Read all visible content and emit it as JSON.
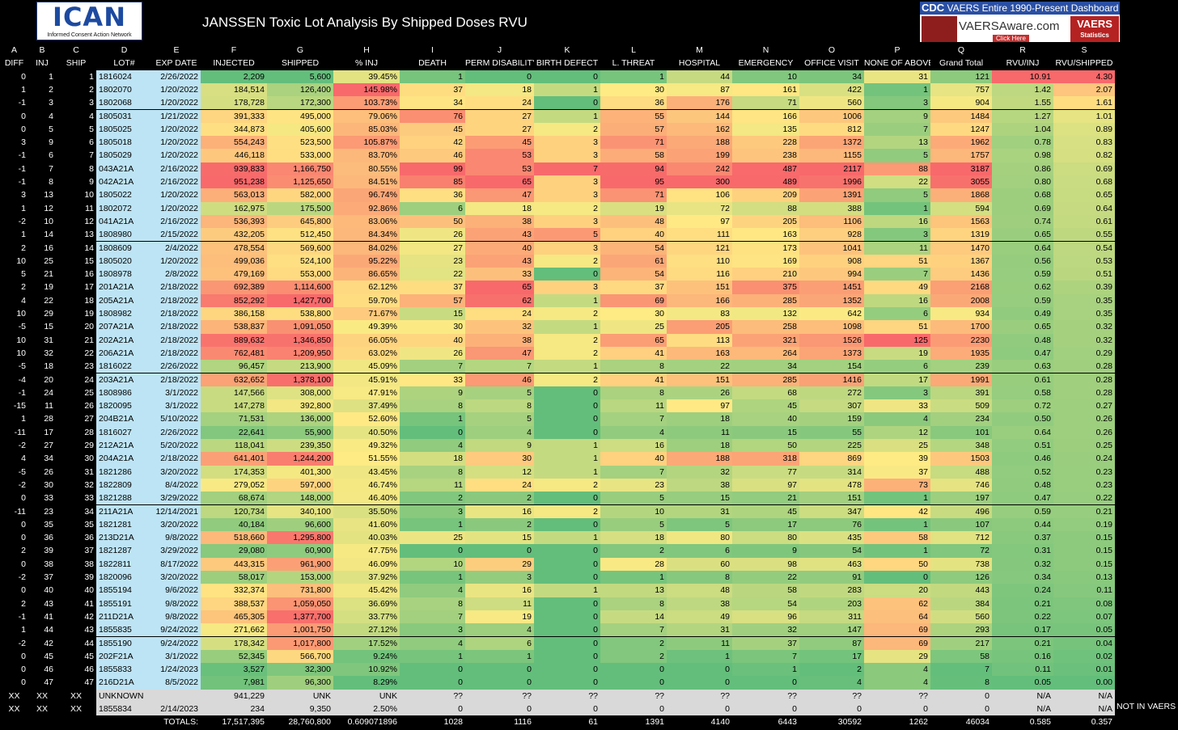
{
  "title": "JANSSEN Toxic Lot Analysis By Shipped Doses RVU",
  "logo": {
    "name": "ICAN",
    "sub": "Informed Consent Action Network"
  },
  "vaers_banner": {
    "top_cdc": "CDC",
    "top": "VAERS Entire 1990-Present Dashboard",
    "site": "VAERSAware.com",
    "click": "Click Here",
    "badge": "VAERS",
    "badge_sub": "Statistics"
  },
  "note": "NOT IN VAERS",
  "colors": {
    "green": "#63be7b",
    "yellow": "#ffeb84",
    "red": "#f8696b",
    "lightblue": "#bde4f4",
    "grey": "#d9d9d9"
  },
  "chart_data": {
    "type": "table",
    "column_letters": [
      "A",
      "B",
      "C",
      "D",
      "E",
      "F",
      "G",
      "H",
      "I",
      "J",
      "K",
      "L",
      "M",
      "N",
      "O",
      "P",
      "Q",
      "R",
      "S"
    ],
    "columns": [
      "DIFF",
      "INJ",
      "SHIP",
      "LOT#",
      "EXP DATE",
      "INJECTED",
      "SHIPPED",
      "% INJ",
      "DEATH",
      "PERM DISABILITY",
      "BIRTH DEFECT",
      "L. THREAT",
      "HOSPITAL",
      "EMERGENCY",
      "OFFICE VISIT",
      "NONE OF ABOVE",
      "Grand Total",
      "RVU/INJ",
      "RVU/SHIPPED"
    ],
    "rows": [
      [
        "0",
        "1",
        "1",
        "1816024",
        "2/26/2022",
        "2,209",
        "5,600",
        "39.45%",
        "1",
        "0",
        "0",
        "1",
        "44",
        "10",
        "34",
        "31",
        "121",
        "10.91",
        "4.30"
      ],
      [
        "1",
        "2",
        "2",
        "1802070",
        "1/20/2022",
        "184,514",
        "126,400",
        "145.98%",
        "37",
        "18",
        "1",
        "30",
        "87",
        "161",
        "422",
        "1",
        "757",
        "1.42",
        "2.07"
      ],
      [
        "-1",
        "3",
        "3",
        "1802068",
        "1/20/2022",
        "178,728",
        "172,300",
        "103.73%",
        "34",
        "24",
        "0",
        "36",
        "176",
        "71",
        "560",
        "3",
        "904",
        "1.55",
        "1.61"
      ],
      [
        "0",
        "4",
        "4",
        "1805031",
        "1/21/2022",
        "391,333",
        "495,000",
        "79.06%",
        "76",
        "27",
        "1",
        "55",
        "144",
        "166",
        "1006",
        "9",
        "1484",
        "1.27",
        "1.01"
      ],
      [
        "0",
        "5",
        "5",
        "1805025",
        "1/20/2022",
        "344,873",
        "405,600",
        "85.03%",
        "45",
        "27",
        "2",
        "57",
        "162",
        "135",
        "812",
        "7",
        "1247",
        "1.04",
        "0.89"
      ],
      [
        "3",
        "9",
        "6",
        "1805018",
        "1/20/2022",
        "554,243",
        "523,500",
        "105.87%",
        "42",
        "45",
        "3",
        "71",
        "188",
        "228",
        "1372",
        "13",
        "1962",
        "0.78",
        "0.83"
      ],
      [
        "-1",
        "6",
        "7",
        "1805029",
        "1/20/2022",
        "446,118",
        "533,000",
        "83.70%",
        "46",
        "53",
        "3",
        "58",
        "199",
        "238",
        "1155",
        "5",
        "1757",
        "0.98",
        "0.82"
      ],
      [
        "-1",
        "7",
        "8",
        "043A21A",
        "2/16/2022",
        "939,833",
        "1,166,750",
        "80.55%",
        "99",
        "53",
        "7",
        "94",
        "242",
        "487",
        "2117",
        "88",
        "3187",
        "0.86",
        "0.69"
      ],
      [
        "-1",
        "8",
        "9",
        "042A21A",
        "2/16/2022",
        "951,238",
        "1,125,650",
        "84.51%",
        "85",
        "65",
        "3",
        "95",
        "300",
        "489",
        "1996",
        "22",
        "3055",
        "0.80",
        "0.68"
      ],
      [
        "3",
        "13",
        "10",
        "1805022",
        "1/20/2022",
        "563,013",
        "582,000",
        "96.74%",
        "36",
        "47",
        "3",
        "71",
        "106",
        "209",
        "1391",
        "5",
        "1868",
        "0.68",
        "0.65"
      ],
      [
        "1",
        "12",
        "11",
        "1802072",
        "1/20/2022",
        "162,975",
        "175,500",
        "92.86%",
        "6",
        "18",
        "2",
        "19",
        "72",
        "88",
        "388",
        "1",
        "594",
        "0.69",
        "0.64"
      ],
      [
        "-2",
        "10",
        "12",
        "041A21A",
        "2/16/2022",
        "536,393",
        "645,800",
        "83.06%",
        "50",
        "38",
        "3",
        "48",
        "97",
        "205",
        "1106",
        "16",
        "1563",
        "0.74",
        "0.61"
      ],
      [
        "1",
        "14",
        "13",
        "1808980",
        "2/15/2022",
        "432,205",
        "512,450",
        "84.34%",
        "26",
        "43",
        "5",
        "40",
        "111",
        "163",
        "928",
        "3",
        "1319",
        "0.65",
        "0.55"
      ],
      [
        "2",
        "16",
        "14",
        "1808609",
        "2/4/2022",
        "478,554",
        "569,600",
        "84.02%",
        "27",
        "40",
        "3",
        "54",
        "121",
        "173",
        "1041",
        "11",
        "1470",
        "0.64",
        "0.54"
      ],
      [
        "10",
        "25",
        "15",
        "1805020",
        "1/20/2022",
        "499,036",
        "524,100",
        "95.22%",
        "23",
        "43",
        "2",
        "61",
        "110",
        "169",
        "908",
        "51",
        "1367",
        "0.56",
        "0.53"
      ],
      [
        "5",
        "21",
        "16",
        "1808978",
        "2/8/2022",
        "479,169",
        "553,000",
        "86.65%",
        "22",
        "33",
        "0",
        "54",
        "116",
        "210",
        "994",
        "7",
        "1436",
        "0.59",
        "0.51"
      ],
      [
        "2",
        "19",
        "17",
        "201A21A",
        "2/18/2022",
        "692,389",
        "1,114,600",
        "62.12%",
        "37",
        "65",
        "3",
        "37",
        "151",
        "375",
        "1451",
        "49",
        "2168",
        "0.62",
        "0.39"
      ],
      [
        "4",
        "22",
        "18",
        "205A21A",
        "2/18/2022",
        "852,292",
        "1,427,700",
        "59.70%",
        "57",
        "62",
        "1",
        "69",
        "166",
        "285",
        "1352",
        "16",
        "2008",
        "0.59",
        "0.35"
      ],
      [
        "10",
        "29",
        "19",
        "1808982",
        "2/18/2022",
        "386,158",
        "538,800",
        "71.67%",
        "15",
        "24",
        "2",
        "30",
        "83",
        "132",
        "642",
        "6",
        "934",
        "0.49",
        "0.35"
      ],
      [
        "-5",
        "15",
        "20",
        "207A21A",
        "2/18/2022",
        "538,837",
        "1,091,050",
        "49.39%",
        "30",
        "32",
        "1",
        "25",
        "205",
        "258",
        "1098",
        "51",
        "1700",
        "0.65",
        "0.32"
      ],
      [
        "10",
        "31",
        "21",
        "202A21A",
        "2/18/2022",
        "889,632",
        "1,346,850",
        "66.05%",
        "40",
        "38",
        "2",
        "65",
        "113",
        "321",
        "1526",
        "125",
        "2230",
        "0.48",
        "0.32"
      ],
      [
        "10",
        "32",
        "22",
        "206A21A",
        "2/18/2022",
        "762,481",
        "1,209,950",
        "63.02%",
        "26",
        "47",
        "2",
        "41",
        "163",
        "264",
        "1373",
        "19",
        "1935",
        "0.47",
        "0.29"
      ],
      [
        "-5",
        "18",
        "23",
        "1816022",
        "2/26/2022",
        "96,457",
        "213,900",
        "45.09%",
        "7",
        "7",
        "1",
        "8",
        "22",
        "34",
        "154",
        "6",
        "239",
        "0.63",
        "0.28"
      ],
      [
        "-4",
        "20",
        "24",
        "203A21A",
        "2/18/2022",
        "632,652",
        "1,378,100",
        "45.91%",
        "33",
        "46",
        "2",
        "41",
        "151",
        "285",
        "1416",
        "17",
        "1991",
        "0.61",
        "0.28"
      ],
      [
        "-1",
        "24",
        "25",
        "1808986",
        "3/1/2022",
        "147,566",
        "308,000",
        "47.91%",
        "9",
        "5",
        "0",
        "8",
        "26",
        "68",
        "272",
        "3",
        "391",
        "0.58",
        "0.28"
      ],
      [
        "-15",
        "11",
        "26",
        "1820095",
        "3/1/2022",
        "147,278",
        "392,800",
        "37.49%",
        "8",
        "8",
        "0",
        "11",
        "97",
        "45",
        "307",
        "33",
        "509",
        "0.72",
        "0.27"
      ],
      [
        "1",
        "28",
        "27",
        "204B21A",
        "5/10/2022",
        "71,531",
        "136,000",
        "52.60%",
        "1",
        "5",
        "0",
        "7",
        "18",
        "40",
        "159",
        "4",
        "234",
        "0.50",
        "0.26"
      ],
      [
        "-11",
        "17",
        "28",
        "1816027",
        "2/26/2022",
        "22,641",
        "55,900",
        "40.50%",
        "0",
        "4",
        "0",
        "4",
        "11",
        "15",
        "55",
        "12",
        "101",
        "0.64",
        "0.26"
      ],
      [
        "-2",
        "27",
        "29",
        "212A21A",
        "5/20/2022",
        "118,041",
        "239,350",
        "49.32%",
        "4",
        "9",
        "1",
        "16",
        "18",
        "50",
        "225",
        "25",
        "348",
        "0.51",
        "0.25"
      ],
      [
        "4",
        "34",
        "30",
        "204A21A",
        "2/18/2022",
        "641,401",
        "1,244,200",
        "51.55%",
        "18",
        "30",
        "1",
        "40",
        "188",
        "318",
        "869",
        "39",
        "1503",
        "0.46",
        "0.24"
      ],
      [
        "-5",
        "26",
        "31",
        "1821286",
        "3/20/2022",
        "174,353",
        "401,300",
        "43.45%",
        "8",
        "12",
        "1",
        "7",
        "32",
        "77",
        "314",
        "37",
        "488",
        "0.52",
        "0.23"
      ],
      [
        "-2",
        "30",
        "32",
        "1822809",
        "8/4/2022",
        "279,052",
        "597,000",
        "46.74%",
        "11",
        "24",
        "2",
        "23",
        "38",
        "97",
        "478",
        "73",
        "746",
        "0.48",
        "0.23"
      ],
      [
        "0",
        "33",
        "33",
        "1821288",
        "3/29/2022",
        "68,674",
        "148,000",
        "46.40%",
        "2",
        "2",
        "0",
        "5",
        "15",
        "21",
        "151",
        "1",
        "197",
        "0.47",
        "0.22"
      ],
      [
        "-11",
        "23",
        "34",
        "211A21A",
        "12/14/2021",
        "120,734",
        "340,100",
        "35.50%",
        "3",
        "16",
        "2",
        "10",
        "31",
        "45",
        "347",
        "42",
        "496",
        "0.59",
        "0.21"
      ],
      [
        "0",
        "35",
        "35",
        "1821281",
        "3/20/2022",
        "40,184",
        "96,600",
        "41.60%",
        "1",
        "2",
        "0",
        "5",
        "5",
        "17",
        "76",
        "1",
        "107",
        "0.44",
        "0.19"
      ],
      [
        "0",
        "36",
        "36",
        "213D21A",
        "9/8/2022",
        "518,660",
        "1,295,800",
        "40.03%",
        "25",
        "15",
        "1",
        "18",
        "80",
        "80",
        "435",
        "58",
        "712",
        "0.37",
        "0.15"
      ],
      [
        "2",
        "39",
        "37",
        "1821287",
        "3/29/2022",
        "29,080",
        "60,900",
        "47.75%",
        "0",
        "0",
        "0",
        "2",
        "6",
        "9",
        "54",
        "1",
        "72",
        "0.31",
        "0.15"
      ],
      [
        "0",
        "38",
        "38",
        "1822811",
        "8/17/2022",
        "443,315",
        "961,900",
        "46.09%",
        "10",
        "29",
        "0",
        "28",
        "60",
        "98",
        "463",
        "50",
        "738",
        "0.32",
        "0.15"
      ],
      [
        "-2",
        "37",
        "39",
        "1820096",
        "3/20/2022",
        "58,017",
        "153,000",
        "37.92%",
        "1",
        "3",
        "0",
        "1",
        "8",
        "22",
        "91",
        "0",
        "126",
        "0.34",
        "0.13"
      ],
      [
        "0",
        "40",
        "40",
        "1855194",
        "9/6/2022",
        "332,374",
        "731,800",
        "45.42%",
        "4",
        "16",
        "1",
        "13",
        "48",
        "58",
        "283",
        "20",
        "443",
        "0.24",
        "0.11"
      ],
      [
        "2",
        "43",
        "41",
        "1855191",
        "9/8/2022",
        "388,537",
        "1,059,050",
        "36.69%",
        "8",
        "11",
        "0",
        "8",
        "38",
        "54",
        "203",
        "62",
        "384",
        "0.21",
        "0.08"
      ],
      [
        "-1",
        "41",
        "42",
        "211D21A",
        "9/8/2022",
        "465,305",
        "1,377,700",
        "33.77%",
        "7",
        "19",
        "0",
        "14",
        "49",
        "96",
        "311",
        "64",
        "560",
        "0.22",
        "0.07"
      ],
      [
        "1",
        "44",
        "43",
        "1855835",
        "9/24/2022",
        "271,662",
        "1,001,750",
        "27.12%",
        "3",
        "4",
        "0",
        "7",
        "31",
        "32",
        "147",
        "69",
        "293",
        "0.17",
        "0.05"
      ],
      [
        "-2",
        "42",
        "44",
        "1855190",
        "9/24/2022",
        "178,342",
        "1,017,800",
        "17.52%",
        "4",
        "6",
        "0",
        "2",
        "11",
        "37",
        "87",
        "69",
        "217",
        "0.21",
        "0.04"
      ],
      [
        "0",
        "45",
        "45",
        "202F21A",
        "3/1/2022",
        "52,345",
        "566,700",
        "9.24%",
        "1",
        "1",
        "0",
        "2",
        "1",
        "7",
        "17",
        "29",
        "58",
        "0.16",
        "0.02"
      ],
      [
        "0",
        "46",
        "46",
        "1855833",
        "1/24/2023",
        "3,527",
        "32,300",
        "10.92%",
        "0",
        "0",
        "0",
        "0",
        "0",
        "1",
        "2",
        "4",
        "7",
        "0.11",
        "0.01"
      ],
      [
        "0",
        "47",
        "47",
        "216D21A",
        "8/5/2022",
        "7,981",
        "96,300",
        "8.29%",
        "0",
        "0",
        "0",
        "0",
        "0",
        "0",
        "4",
        "4",
        "8",
        "0.05",
        "0.00"
      ]
    ],
    "extra_rows": [
      [
        "XX",
        "XX",
        "XX",
        "UNKNOWN",
        "",
        "941,229",
        "UNK",
        "UNK",
        "??",
        "??",
        "??",
        "??",
        "??",
        "??",
        "??",
        "??",
        "0",
        "N/A",
        "N/A"
      ],
      [
        "XX",
        "XX",
        "XX",
        "1855834",
        "2/14/2023",
        "234",
        "9,350",
        "2.50%",
        "0",
        "0",
        "0",
        "0",
        "0",
        "0",
        "0",
        "0",
        "0",
        "N/A",
        "N/A"
      ]
    ],
    "totals": {
      "label": "TOTALS:",
      "values": [
        "17,517,395",
        "28,760,800",
        "0.609071896",
        "1028",
        "1116",
        "61",
        "1391",
        "4140",
        "6443",
        "30592",
        "1262",
        "46034",
        "0.585",
        "0.357"
      ]
    }
  }
}
